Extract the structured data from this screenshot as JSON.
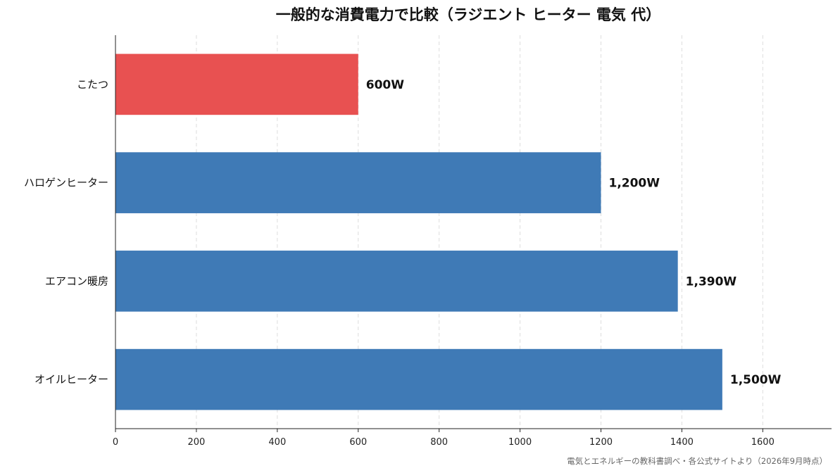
{
  "chart_data": {
    "type": "bar",
    "orientation": "horizontal",
    "title": "一般的な消費電力で比較（ラジエント ヒーター 電気 代）",
    "categories": [
      "こたつ",
      "ハロゲンヒーター",
      "エアコン暖房",
      "オイルヒーター"
    ],
    "values": [
      600,
      1200,
      1390,
      1500
    ],
    "value_labels": [
      "600W",
      "1,200W",
      "1,390W",
      "1,500W"
    ],
    "bar_colors": [
      "#e85151",
      "#3f7ab6",
      "#3f7ab6",
      "#3f7ab6"
    ],
    "xlim": [
      0,
      1770
    ],
    "x_ticks": [
      "0",
      "200",
      "400",
      "600",
      "800",
      "1000",
      "1200",
      "1400",
      "1600"
    ],
    "grid": "vertical dashed",
    "xlabel": "",
    "ylabel": ""
  },
  "source_note": "電気とエネルギーの教科書調べ・各公式サイトより（2026年9月時点）"
}
